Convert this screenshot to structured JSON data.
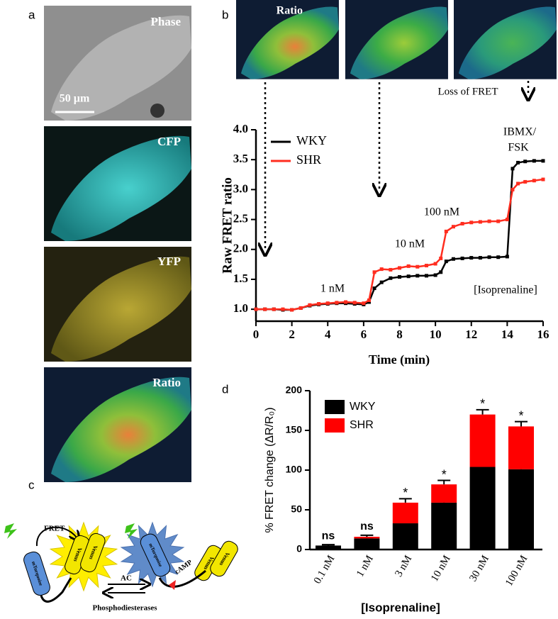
{
  "figure": {
    "panel_labels": [
      "a",
      "b",
      "c",
      "d"
    ],
    "image_labels": [
      "Phase",
      "CFP",
      "YFP",
      "Ratio",
      "Ratio"
    ],
    "scale_bar": "50 µm",
    "loss_label": "Loss of FRET",
    "diagram": {
      "fret": "FRET",
      "ac": "AC",
      "pde": "Phosphodiesterases",
      "camp": "cAMP",
      "venus": "Venus",
      "donor": "mTurquoise"
    }
  },
  "chart_data": [
    {
      "type": "line",
      "y_label": "Raw FRET ratio",
      "x_label": "Time (min)",
      "x": [
        0,
        0.5,
        1,
        1.5,
        2,
        2.5,
        3,
        3.5,
        4,
        4.5,
        5,
        5.5,
        6,
        6.3,
        6.6,
        7,
        7.5,
        8,
        8.5,
        9,
        9.5,
        10,
        10.3,
        10.6,
        11,
        11.5,
        12,
        12.5,
        13,
        13.5,
        14,
        14.3,
        14.6,
        15,
        15.5,
        16
      ],
      "series": [
        {
          "name": "WKY",
          "color": "#000000",
          "values": [
            1.0,
            1.0,
            1.0,
            0.99,
            0.99,
            1.02,
            1.06,
            1.08,
            1.09,
            1.1,
            1.1,
            1.09,
            1.08,
            1.12,
            1.35,
            1.45,
            1.52,
            1.54,
            1.55,
            1.56,
            1.56,
            1.57,
            1.62,
            1.8,
            1.84,
            1.85,
            1.86,
            1.86,
            1.87,
            1.87,
            1.88,
            3.35,
            3.45,
            3.47,
            3.48,
            3.48
          ]
        },
        {
          "name": "SHR",
          "color": "#ff2d1f",
          "values": [
            1.0,
            1.0,
            1.0,
            1.0,
            0.99,
            1.02,
            1.07,
            1.09,
            1.1,
            1.11,
            1.12,
            1.11,
            1.1,
            1.15,
            1.62,
            1.67,
            1.66,
            1.69,
            1.72,
            1.71,
            1.73,
            1.76,
            1.85,
            2.3,
            2.38,
            2.43,
            2.45,
            2.46,
            2.47,
            2.47,
            2.5,
            3.0,
            3.1,
            3.13,
            3.15,
            3.17
          ]
        }
      ],
      "xlim": [
        0,
        16
      ],
      "xticks": [
        0,
        2,
        4,
        6,
        8,
        10,
        12,
        14,
        16
      ],
      "ylim": [
        0.8,
        4.0
      ],
      "yticks": [
        {
          "value": 1,
          "label": "1.0"
        },
        {
          "value": 1.5,
          "label": "1.5"
        },
        {
          "value": 2,
          "label": "2.0"
        },
        {
          "value": 2.5,
          "label": "2.5"
        },
        {
          "value": 3,
          "label": "3.0"
        },
        {
          "value": 3.5,
          "label": "3.5"
        },
        {
          "value": 4,
          "label": "4.0"
        }
      ],
      "annotations": [
        "1 nM",
        "10 nM",
        "100 nM",
        "IBMX/",
        "FSK",
        "[Isoprenaline]"
      ],
      "legend": "upper left"
    },
    {
      "type": "stacked_bar",
      "y_label": "% FRET change (ΔR/R₀)",
      "x_label": "[Isoprenaline]",
      "categories": [
        "0.1 nM",
        "1 nM",
        "3 nM",
        "10 nM",
        "30 nM",
        "100 nM"
      ],
      "series": [
        {
          "name": "WKY",
          "color": "#000000",
          "values": [
            5,
            14,
            33,
            59,
            104,
            101
          ],
          "errors": [
            1,
            1,
            2,
            3,
            3,
            3
          ]
        },
        {
          "name": "SHR",
          "color": "#ff0000",
          "values": [
            0,
            2,
            26,
            23,
            66,
            54
          ],
          "errors": [
            1,
            2,
            5,
            5,
            6,
            6
          ]
        }
      ],
      "ylim": [
        0,
        200
      ],
      "yticks": [
        0,
        50,
        100,
        150,
        200
      ],
      "significance": [
        "ns",
        "ns",
        "*",
        "*",
        "*",
        "*"
      ],
      "legend": "upper left"
    }
  ]
}
